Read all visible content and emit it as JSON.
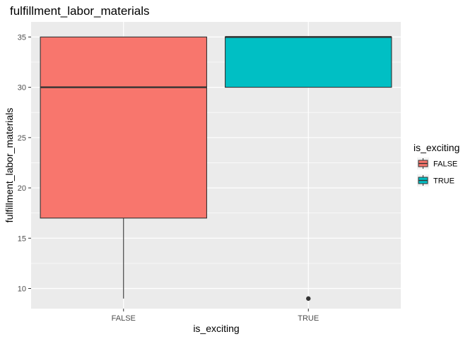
{
  "chart_data": {
    "type": "box",
    "title": "fulfillment_labor_materials",
    "xlabel": "is_exciting",
    "ylabel": "fulfillment_labor_materials",
    "ylim": [
      8,
      36.5
    ],
    "yticks": [
      10,
      15,
      20,
      25,
      30,
      35
    ],
    "categories": [
      "FALSE",
      "TRUE"
    ],
    "boxes": [
      {
        "category": "FALSE",
        "min": 9,
        "q1": 17,
        "median": 30,
        "q3": 35,
        "max": 35,
        "outliers": [],
        "color": "#F8766D"
      },
      {
        "category": "TRUE",
        "min": 30,
        "q1": 30,
        "median": 35,
        "q3": 35,
        "max": 35,
        "outliers": [
          9
        ],
        "color": "#00BFC4"
      }
    ],
    "legend": {
      "title": "is_exciting",
      "position": "right",
      "entries": [
        {
          "label": "FALSE",
          "color": "#F8766D"
        },
        {
          "label": "TRUE",
          "color": "#00BFC4"
        }
      ]
    },
    "grid": true,
    "panel_background": "#EBEBEB",
    "grid_color": "#FFFFFF"
  }
}
